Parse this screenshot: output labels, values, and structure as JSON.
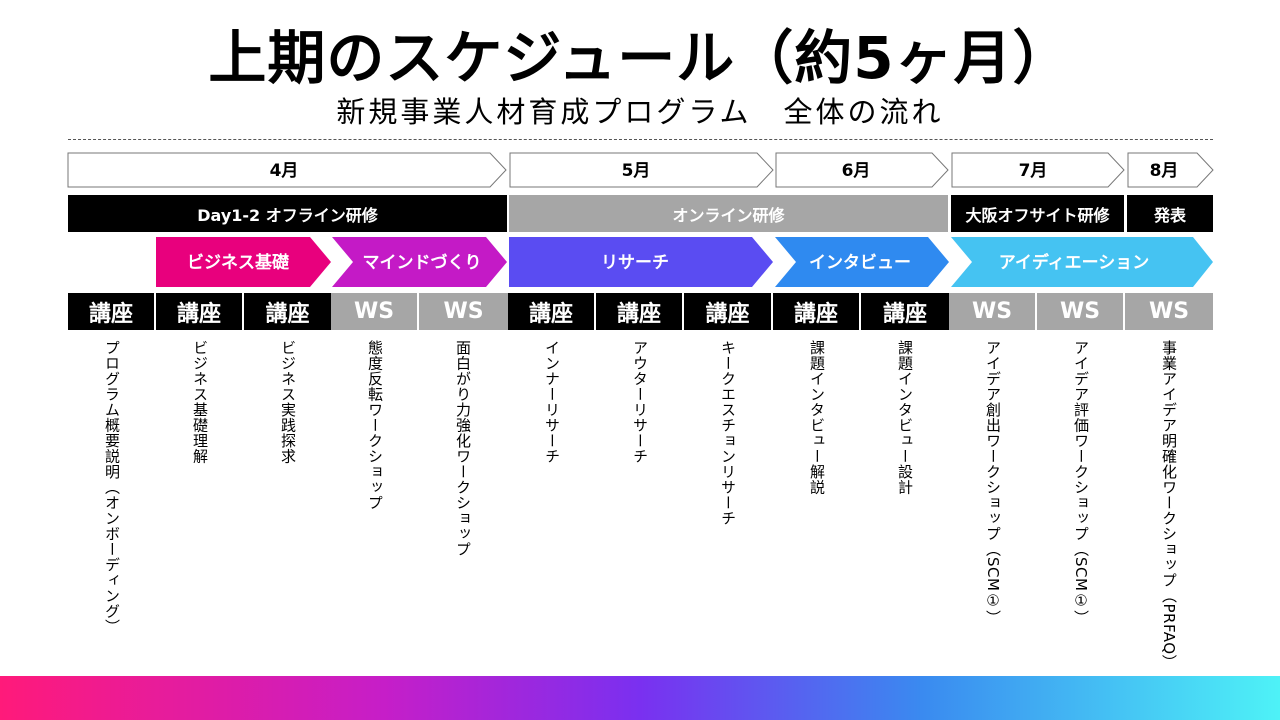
{
  "title": "上期のスケジュール（約5ヶ月）",
  "subtitle": "新規事業人材育成プログラム　全体の流れ",
  "months": [
    "4月",
    "5月",
    "6月",
    "7月",
    "8月"
  ],
  "bands": [
    "Day1-2  オフライン研修",
    "オンライン研修",
    "大阪オフサイト研修",
    "発表"
  ],
  "phases": [
    {
      "label": "ビジネス基礎",
      "color": "#e8007d"
    },
    {
      "label": "マインドづくり",
      "color": "#c41ac6"
    },
    {
      "label": "リサーチ",
      "color": "#5a4cf2"
    },
    {
      "label": "インタビュー",
      "color": "#2f8af0"
    },
    {
      "label": "アイディエーション",
      "color": "#45c3f2"
    }
  ],
  "sessions": [
    "講座",
    "講座",
    "講座",
    "WS",
    "WS",
    "講座",
    "講座",
    "講座",
    "講座",
    "講座",
    "WS",
    "WS",
    "WS"
  ],
  "descriptions": [
    "プログラム概要説明（オンボーディング）",
    "ビジネス基礎理解",
    "ビジネス実践探求",
    "態度反転ワークショップ",
    "面白がり力強化ワークショップ",
    "インナーリサーチ",
    "アウターリサーチ",
    "キークエスチョンリサーチ",
    "課題インタビュー解説",
    "課題インタビュー設計",
    "アイデア創出ワークショップ（SCM①）",
    "アイデア評価ワークショップ（SCM①）",
    "事業アイデア明確化ワークショップ（PRFAQ）"
  ]
}
